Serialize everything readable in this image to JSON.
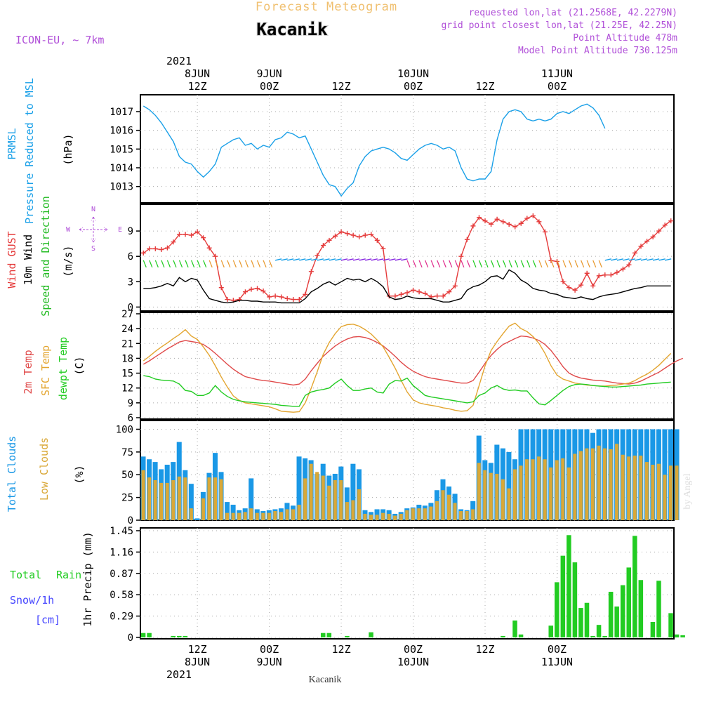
{
  "header": {
    "title": "Forecast Meteogram",
    "place": "Kacanik",
    "model": "ICON-EU, ~ 7km",
    "requested": "requested lon,lat (21.2568E, 42.2279N)",
    "grid_point": "grid point closest lon,lat (21.25E, 42.25N)",
    "point_altitude": "Point Altitude 478m",
    "model_altitude": "Model Point Altitude 730.125m"
  },
  "top_axis": {
    "year": "2021",
    "ticks": [
      {
        "date": "8JUN",
        "hour": "12Z"
      },
      {
        "date": "9JUN",
        "hour": "00Z"
      },
      {
        "date": "",
        "hour": "12Z"
      },
      {
        "date": "10JUN",
        "hour": "00Z"
      },
      {
        "date": "",
        "hour": "12Z"
      },
      {
        "date": "11JUN",
        "hour": "00Z"
      }
    ]
  },
  "bottom_axis": {
    "year": "2021",
    "ticks": [
      {
        "hour": "12Z",
        "date": "8JUN"
      },
      {
        "hour": "00Z",
        "date": "9JUN"
      },
      {
        "hour": "12Z",
        "date": ""
      },
      {
        "hour": "00Z",
        "date": "10JUN"
      },
      {
        "hour": "12Z",
        "date": ""
      },
      {
        "hour": "00Z",
        "date": "11JUN"
      }
    ],
    "footer": "Kacanik"
  },
  "watermark": "by Angel",
  "colors": {
    "pressure": "#1aa0e8",
    "gust": "#e53b3b",
    "wind": "#000000",
    "direction_label": "#22bb22",
    "temp": "#e04a4a",
    "sfc_temp": "#e3a530",
    "dewpoint": "#22cc22",
    "total_clouds": "#1a98e6",
    "low_clouds": "#d9a838",
    "rain": "#22cc22",
    "snow": "#4444ff",
    "header_purple": "#b04fd8",
    "title_orange": "#f0c070"
  },
  "chart_data": [
    {
      "type": "line",
      "panel": "pressure",
      "ylabel_lines": [
        "PRMSL",
        "Pressure Reduced to MSL",
        "(hPa)"
      ],
      "yticks": [
        1013,
        1014,
        1015,
        1016,
        1017
      ],
      "ylim": [
        1012.2,
        1017.6
      ],
      "x_start_hour": 0,
      "step_hours": 1,
      "series": [
        {
          "values": [
            1017.3,
            1017.1,
            1016.8,
            1016.4,
            1015.9,
            1015.4,
            1014.6,
            1014.3,
            1014.2,
            1013.8,
            1013.5,
            1013.8,
            1014.2,
            1015.1,
            1015.3,
            1015.5,
            1015.6,
            1015.2,
            1015.3,
            1015.0,
            1015.2,
            1015.1,
            1015.5,
            1015.6,
            1015.9,
            1015.8,
            1015.6,
            1015.7,
            1015.0,
            1014.3,
            1013.6,
            1013.1,
            1013.0,
            1012.5,
            1012.9,
            1013.2,
            1014.1,
            1014.6,
            1014.9,
            1015.0,
            1015.1,
            1015.0,
            1014.8,
            1014.5,
            1014.4,
            1014.7,
            1015.0,
            1015.2,
            1015.3,
            1015.2,
            1015.0,
            1015.1,
            1014.9,
            1014.0,
            1013.4,
            1013.3,
            1013.4,
            1013.4,
            1013.8,
            1015.5,
            1016.6,
            1017.0,
            1017.1,
            1017.0,
            1016.6,
            1016.5,
            1016.6,
            1016.5,
            1016.6,
            1016.9,
            1017.0,
            1016.9,
            1017.1,
            1017.3,
            1017.4,
            1017.2,
            1016.8,
            1016.1
          ]
        }
      ]
    },
    {
      "type": "line",
      "panel": "wind",
      "ylabel_lines": [
        "Wind GUST",
        "10m Wind",
        "Speed and Direction",
        "(m/s)"
      ],
      "compass": {
        "n": "N",
        "s": "S",
        "w": "W",
        "e": "E"
      },
      "yticks": [
        0,
        3,
        6,
        9
      ],
      "ylim": [
        -0.3,
        11.5
      ],
      "x_start_hour": 0,
      "step_hours": 1,
      "series": [
        {
          "name": "Wind GUST",
          "values": [
            6.4,
            6.9,
            6.9,
            6.8,
            7.0,
            7.7,
            8.6,
            8.6,
            8.5,
            8.9,
            8.2,
            7.0,
            6.0,
            2.3,
            0.9,
            0.8,
            0.9,
            1.8,
            2.1,
            2.2,
            1.9,
            1.2,
            1.3,
            1.2,
            1.0,
            0.9,
            0.9,
            1.5,
            4.2,
            6.1,
            7.3,
            7.9,
            8.4,
            8.9,
            8.7,
            8.5,
            8.3,
            8.5,
            8.6,
            7.9,
            6.9,
            1.3,
            1.3,
            1.5,
            1.7,
            2.0,
            1.8,
            1.6,
            1.2,
            1.3,
            1.3,
            1.8,
            2.5,
            6.0,
            8.0,
            9.6,
            10.6,
            10.2,
            9.8,
            10.4,
            10.1,
            9.8,
            9.5,
            9.9,
            10.5,
            10.8,
            10.1,
            8.9,
            5.5,
            5.4,
            3.0,
            2.3,
            2.0,
            2.6,
            4.0,
            2.5,
            3.7,
            3.8,
            3.8,
            4.1,
            4.5,
            5.0,
            6.4,
            7.2,
            7.8,
            8.3,
            9.0,
            9.7,
            10.2
          ]
        },
        {
          "name": "10m Wind",
          "values": [
            2.2,
            2.2,
            2.3,
            2.5,
            2.8,
            2.5,
            3.5,
            3.0,
            3.4,
            3.2,
            2.0,
            1.0,
            0.8,
            0.6,
            0.5,
            0.6,
            0.8,
            0.8,
            0.7,
            0.7,
            0.6,
            0.6,
            0.6,
            0.5,
            0.5,
            0.5,
            0.5,
            1.0,
            1.8,
            2.2,
            2.7,
            3.0,
            2.6,
            3.0,
            3.4,
            3.2,
            3.3,
            3.0,
            3.4,
            3.0,
            2.4,
            1.2,
            0.9,
            1.0,
            1.3,
            1.1,
            1.0,
            1.0,
            1.0,
            0.8,
            0.6,
            0.6,
            0.8,
            1.0,
            2.0,
            2.4,
            2.6,
            3.0,
            3.6,
            3.7,
            3.3,
            4.4,
            4.0,
            3.2,
            2.8,
            2.2,
            2.0,
            1.9,
            1.6,
            1.5,
            1.2,
            1.1,
            1.0,
            1.2,
            1.0,
            0.9,
            1.2,
            1.4,
            1.5,
            1.6,
            1.8,
            2.0,
            2.2,
            2.3,
            2.5,
            2.5,
            2.5,
            2.5,
            2.5
          ]
        }
      ]
    },
    {
      "type": "line",
      "panel": "temperature",
      "ylabel_lines": [
        "2m Temp",
        "SFC Temp",
        "dewpt Temp",
        "(C)"
      ],
      "yticks": [
        6,
        9,
        12,
        15,
        18,
        21,
        24,
        27
      ],
      "ylim": [
        6,
        27
      ],
      "x_start_hour": 0,
      "step_hours": 1,
      "series": [
        {
          "name": "2m Temp",
          "values": [
            16.8,
            17.5,
            18.3,
            19.1,
            19.9,
            20.6,
            21.3,
            21.6,
            21.4,
            21.2,
            20.8,
            20.0,
            19.0,
            17.9,
            16.8,
            15.8,
            15.0,
            14.3,
            14.0,
            13.7,
            13.5,
            13.4,
            13.2,
            13.0,
            12.8,
            12.6,
            12.8,
            13.8,
            15.5,
            17.0,
            18.4,
            19.5,
            20.5,
            21.3,
            21.9,
            22.3,
            22.4,
            22.2,
            21.8,
            21.2,
            20.5,
            19.5,
            18.4,
            17.2,
            16.2,
            15.4,
            14.8,
            14.3,
            14.0,
            13.8,
            13.6,
            13.4,
            13.2,
            13.0,
            13.0,
            13.5,
            15.2,
            17.0,
            18.6,
            19.8,
            20.8,
            21.4,
            22.0,
            22.5,
            22.4,
            22.1,
            21.6,
            20.8,
            19.6,
            18.0,
            16.3,
            15.0,
            14.4,
            14.0,
            13.8,
            13.6,
            13.5,
            13.4,
            13.2,
            13.0,
            12.9,
            12.8,
            13.0,
            13.4,
            14.0,
            14.6,
            15.2,
            16.0,
            16.8,
            17.5,
            18.0
          ]
        },
        {
          "name": "SFC Temp",
          "values": [
            17.5,
            18.4,
            19.4,
            20.3,
            21.1,
            22.0,
            22.8,
            23.8,
            22.5,
            21.8,
            20.3,
            18.6,
            16.5,
            14.2,
            12.2,
            10.4,
            9.5,
            9.0,
            8.8,
            8.6,
            8.4,
            8.2,
            7.8,
            7.3,
            7.2,
            7.1,
            7.2,
            9.0,
            12.0,
            15.3,
            18.8,
            21.2,
            23.0,
            24.4,
            24.8,
            24.9,
            24.5,
            23.8,
            22.9,
            21.7,
            20.3,
            18.2,
            16.0,
            13.5,
            11.2,
            9.6,
            9.0,
            8.7,
            8.5,
            8.3,
            8.0,
            7.8,
            7.5,
            7.3,
            7.4,
            8.5,
            12.5,
            16.5,
            19.6,
            21.4,
            23.0,
            24.5,
            25.1,
            24.0,
            23.4,
            22.4,
            21.0,
            19.0,
            16.5,
            14.6,
            13.8,
            13.4,
            13.0,
            12.8,
            12.6,
            12.5,
            12.4,
            12.4,
            12.5,
            12.6,
            12.8,
            13.0,
            13.5,
            14.2,
            14.8,
            15.6,
            16.6,
            17.8,
            19.0
          ]
        },
        {
          "name": "dewpt Temp",
          "values": [
            14.5,
            14.3,
            13.8,
            13.6,
            13.5,
            13.4,
            12.8,
            11.5,
            11.3,
            10.5,
            10.5,
            11.0,
            12.5,
            11.2,
            10.3,
            9.7,
            9.4,
            9.2,
            9.1,
            9.0,
            8.9,
            8.8,
            8.7,
            8.5,
            8.4,
            8.3,
            8.3,
            10.5,
            11.2,
            11.5,
            11.7,
            12.0,
            13.0,
            13.8,
            12.5,
            11.5,
            11.5,
            11.8,
            12.0,
            11.2,
            11.0,
            12.8,
            13.5,
            13.4,
            14.0,
            12.5,
            11.5,
            10.5,
            10.2,
            10.0,
            9.8,
            9.6,
            9.4,
            9.2,
            9.0,
            9.2,
            10.5,
            11.0,
            12.0,
            12.5,
            11.8,
            11.5,
            11.6,
            11.4,
            11.4,
            10.0,
            8.8,
            8.6,
            9.5,
            10.5,
            11.5,
            12.3,
            12.7,
            12.8,
            12.7,
            12.5,
            12.4,
            12.3,
            12.2,
            12.2,
            12.3,
            12.4,
            12.5,
            12.6,
            12.8,
            12.9,
            13.0,
            13.1,
            13.2
          ]
        }
      ]
    },
    {
      "type": "bar",
      "panel": "clouds",
      "ylabel_lines": [
        "Total Clouds",
        "Low Clouds",
        "(%)"
      ],
      "yticks": [
        0,
        25,
        50,
        75,
        100
      ],
      "ylim": [
        0,
        105
      ],
      "x_start_hour": 0,
      "step_hours": 1,
      "series": [
        {
          "name": "Total Clouds",
          "values": [
            70,
            67,
            64,
            56,
            61,
            64,
            86,
            55,
            40,
            2,
            31,
            52,
            74,
            53,
            20,
            17,
            11,
            13,
            46,
            12,
            10,
            11,
            12,
            13,
            19,
            16,
            70,
            68,
            66,
            51,
            62,
            49,
            51,
            59,
            36,
            62,
            56,
            11,
            9,
            12,
            12,
            11,
            7,
            9,
            13,
            14,
            17,
            16,
            19,
            33,
            45,
            37,
            29,
            12,
            11,
            21,
            93,
            66,
            63,
            83,
            79,
            75,
            67,
            100,
            100,
            100,
            100,
            100,
            100,
            100,
            100,
            100,
            100,
            100,
            100,
            96,
            100,
            100,
            100,
            100,
            100,
            100,
            100,
            100,
            100,
            100,
            100,
            100,
            100,
            100
          ]
        },
        {
          "name": "Low Clouds",
          "values": [
            55,
            47,
            44,
            41,
            41,
            44,
            48,
            47,
            13,
            0,
            24,
            47,
            47,
            45,
            8,
            8,
            8,
            9,
            13,
            8,
            8,
            8,
            10,
            9,
            12,
            12,
            17,
            46,
            62,
            53,
            49,
            38,
            44,
            44,
            20,
            22,
            34,
            7,
            6,
            6,
            8,
            7,
            5,
            7,
            11,
            13,
            13,
            13,
            15,
            21,
            33,
            28,
            19,
            10,
            10,
            12,
            63,
            55,
            52,
            51,
            45,
            35,
            56,
            60,
            67,
            67,
            70,
            67,
            58,
            66,
            68,
            58,
            73,
            76,
            79,
            79,
            82,
            79,
            78,
            84,
            72,
            70,
            71,
            71,
            64,
            61,
            62,
            50,
            60,
            60
          ]
        }
      ]
    },
    {
      "type": "bar",
      "panel": "precip",
      "ylabel_lines": [
        "Total",
        "Rain",
        "Snow/1h",
        "[cm]",
        "1hr Precip (mm)"
      ],
      "yticks": [
        0,
        0.29,
        0.58,
        0.87,
        1.16,
        1.45
      ],
      "ylim": [
        0,
        1.45
      ],
      "x_start_hour": 0,
      "step_hours": 1,
      "series": [
        {
          "name": "Total Rain",
          "values": [
            0.06,
            0.06,
            0.0,
            0.0,
            0.0,
            0.02,
            0.02,
            0.02,
            0.0,
            0.0,
            0.0,
            0.0,
            0.0,
            0.0,
            0.0,
            0.0,
            0.0,
            0.0,
            0.0,
            0.0,
            0.0,
            0.0,
            0.0,
            0.0,
            0.0,
            0.0,
            0.0,
            0.0,
            0.0,
            0.0,
            0.06,
            0.06,
            0.0,
            0.0,
            0.02,
            0.0,
            0.0,
            0.0,
            0.07,
            0.0,
            0.0,
            0.0,
            0.0,
            0.0,
            0.0,
            0.0,
            0.0,
            0.0,
            0.0,
            0.0,
            0.0,
            0.0,
            0.0,
            0.0,
            0.0,
            0.0,
            0.0,
            0.0,
            0.0,
            0.0,
            0.02,
            0.0,
            0.23,
            0.04,
            0.0,
            0.0,
            0.0,
            0.0,
            0.16,
            0.75,
            1.11,
            1.39,
            1.02,
            0.4,
            0.47,
            0.02,
            0.17,
            0.02,
            0.62,
            0.42,
            0.71,
            0.95,
            1.38,
            0.78,
            0.0,
            0.21,
            0.77,
            0.0,
            0.33,
            0.04,
            0.03
          ]
        },
        {
          "name": "Snow/1h",
          "values": []
        }
      ]
    }
  ]
}
